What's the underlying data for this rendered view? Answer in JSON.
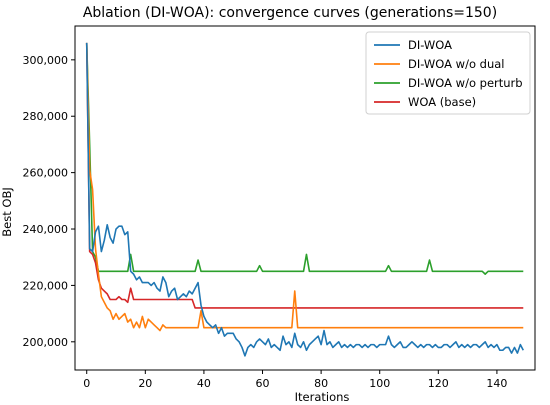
{
  "chart_data": {
    "type": "line",
    "title": "Ablation (DI-WOA): convergence curves (generations=150)",
    "xlabel": "Iterations",
    "ylabel": "Best OBJ",
    "xlim": [
      -4,
      153
    ],
    "ylim": [
      190000,
      312000
    ],
    "xticks": [
      0,
      20,
      40,
      60,
      80,
      100,
      120,
      140
    ],
    "xtick_labels": [
      "0",
      "20",
      "40",
      "60",
      "80",
      "100",
      "120",
      "140"
    ],
    "yticks": [
      200000,
      220000,
      240000,
      260000,
      280000,
      300000
    ],
    "ytick_labels": [
      "200,000",
      "220,000",
      "240,000",
      "260,000",
      "280,000",
      "300,000"
    ],
    "grid": false,
    "legend_position": "top-right",
    "series": [
      {
        "name": "DI-WOA",
        "color": "#1f77b4",
        "values": [
          306000,
          233000,
          232000,
          239000,
          241000,
          232000,
          236000,
          241500,
          237000,
          235000,
          240000,
          241000,
          241000,
          238000,
          239000,
          225000,
          224000,
          222000,
          223000,
          221000,
          221000,
          221000,
          220000,
          221000,
          219000,
          218000,
          223000,
          221000,
          216000,
          218000,
          219000,
          215000,
          216000,
          217000,
          216000,
          218000,
          217000,
          219000,
          221000,
          213000,
          209000,
          207000,
          206000,
          205000,
          206000,
          203000,
          205000,
          202000,
          203000,
          203000,
          203000,
          201000,
          200000,
          198000,
          195000,
          198000,
          199000,
          198000,
          200000,
          201000,
          200000,
          199000,
          201000,
          198000,
          199000,
          198000,
          197000,
          202000,
          199000,
          200000,
          198000,
          203000,
          199000,
          198000,
          200000,
          197000,
          199000,
          200000,
          201000,
          202000,
          199000,
          204000,
          199000,
          200000,
          198000,
          199000,
          200000,
          198000,
          199000,
          198000,
          199000,
          198000,
          199000,
          199000,
          198000,
          199000,
          198000,
          199000,
          199000,
          198000,
          199000,
          199000,
          199000,
          202000,
          199000,
          198000,
          199000,
          200000,
          198000,
          198000,
          199000,
          200000,
          199000,
          198000,
          199000,
          198000,
          199000,
          199000,
          198000,
          199000,
          198000,
          198000,
          199000,
          199000,
          198000,
          199000,
          200000,
          198000,
          199000,
          198000,
          199000,
          198000,
          199000,
          199000,
          198000,
          199000,
          200000,
          198000,
          199000,
          198000,
          199000,
          197000,
          197000,
          198000,
          198000,
          196000,
          198000,
          196000,
          199000,
          197000
        ],
        "svg_path_note": ""
      },
      {
        "name": "DI-WOA w/o dual",
        "color": "#ff7f0e",
        "values": [
          306000,
          261000,
          254000,
          233000,
          224000,
          216000,
          214000,
          212000,
          211000,
          208000,
          210000,
          208000,
          209000,
          210000,
          207000,
          208000,
          205000,
          207000,
          205000,
          209000,
          205000,
          208000,
          207000,
          206000,
          205000,
          204000,
          206000,
          205000,
          205000,
          205000,
          205000,
          205000,
          205000,
          205000,
          205000,
          205000,
          205000,
          205000,
          205000,
          211000,
          205000,
          205000,
          205000,
          205000,
          205000,
          205000,
          205000,
          205000,
          205000,
          205000,
          205000,
          205000,
          205000,
          205000,
          205000,
          205000,
          205000,
          205000,
          205000,
          205000,
          205000,
          205000,
          205000,
          205000,
          205000,
          205000,
          205000,
          205000,
          205000,
          205000,
          205000,
          218000,
          205000,
          205000,
          205000,
          205000,
          205000,
          205000,
          205000,
          205000,
          205000,
          205000,
          205000,
          205000,
          205000,
          205000,
          205000,
          205000,
          205000,
          205000,
          205000,
          205000,
          205000,
          205000,
          205000,
          205000,
          205000,
          205000,
          205000,
          205000,
          205000,
          205000,
          205000,
          205000,
          205000,
          205000,
          205000,
          205000,
          205000,
          205000,
          205000,
          205000,
          205000,
          205000,
          205000,
          205000,
          205000,
          205000,
          205000,
          205000,
          205000,
          205000,
          205000,
          205000,
          205000,
          205000,
          205000,
          205000,
          205000,
          205000,
          205000,
          205000,
          205000,
          205000,
          205000,
          205000,
          205000,
          205000,
          205000,
          205000,
          205000,
          205000,
          205000,
          205000,
          205000,
          205000,
          205000,
          205000,
          205000,
          205000
        ]
      },
      {
        "name": "DI-WOA w/o perturb",
        "color": "#2ca02c",
        "values": [
          306000,
          270000,
          232000,
          230000,
          225000,
          225000,
          225000,
          225000,
          225000,
          225000,
          225000,
          225000,
          225000,
          225000,
          225000,
          231000,
          225000,
          225000,
          225000,
          225000,
          225000,
          225000,
          225000,
          225000,
          225000,
          225000,
          225000,
          225000,
          225000,
          225000,
          225000,
          225000,
          225000,
          225000,
          225000,
          225000,
          225000,
          225000,
          229000,
          225000,
          225000,
          225000,
          225000,
          225000,
          225000,
          225000,
          225000,
          225000,
          225000,
          225000,
          225000,
          225000,
          225000,
          225000,
          225000,
          225000,
          225000,
          225000,
          225000,
          227000,
          225000,
          225000,
          225000,
          225000,
          225000,
          225000,
          225000,
          225000,
          225000,
          225000,
          225000,
          225000,
          225000,
          225000,
          225000,
          231000,
          225000,
          225000,
          225000,
          225000,
          225000,
          225000,
          225000,
          225000,
          225000,
          225000,
          225000,
          225000,
          225000,
          225000,
          225000,
          225000,
          225000,
          225000,
          225000,
          225000,
          225000,
          225000,
          225000,
          225000,
          225000,
          225000,
          225000,
          227000,
          225000,
          225000,
          225000,
          225000,
          225000,
          225000,
          225000,
          225000,
          225000,
          225000,
          225000,
          225000,
          225000,
          229000,
          225000,
          225000,
          225000,
          225000,
          225000,
          225000,
          225000,
          225000,
          225000,
          225000,
          225000,
          225000,
          225000,
          225000,
          225000,
          225000,
          225000,
          225000,
          224000,
          225000,
          225000,
          225000,
          225000,
          225000,
          225000,
          225000,
          225000,
          225000,
          225000,
          225000,
          225000,
          225000
        ]
      },
      {
        "name": "WOA (base)",
        "color": "#d62728",
        "values": [
          306000,
          232000,
          231000,
          228000,
          222000,
          219000,
          218000,
          217000,
          215000,
          215000,
          215000,
          216000,
          215000,
          215000,
          214000,
          219000,
          215000,
          215000,
          215000,
          215000,
          215000,
          215000,
          215000,
          215000,
          215000,
          215000,
          215000,
          215000,
          215000,
          215000,
          215000,
          215000,
          215000,
          215000,
          215000,
          215000,
          215000,
          212000,
          212000,
          212000,
          212000,
          212000,
          212000,
          212000,
          212000,
          212000,
          212000,
          212000,
          212000,
          212000,
          212000,
          212000,
          212000,
          212000,
          212000,
          212000,
          212000,
          212000,
          212000,
          212000,
          212000,
          212000,
          212000,
          212000,
          212000,
          212000,
          212000,
          212000,
          212000,
          212000,
          212000,
          212000,
          212000,
          212000,
          212000,
          212000,
          212000,
          212000,
          212000,
          212000,
          212000,
          212000,
          212000,
          212000,
          212000,
          212000,
          212000,
          212000,
          212000,
          212000,
          212000,
          212000,
          212000,
          212000,
          212000,
          212000,
          212000,
          212000,
          212000,
          212000,
          212000,
          212000,
          212000,
          212000,
          212000,
          212000,
          212000,
          212000,
          212000,
          212000,
          212000,
          212000,
          212000,
          212000,
          212000,
          212000,
          212000,
          212000,
          212000,
          212000,
          212000,
          212000,
          212000,
          212000,
          212000,
          212000,
          212000,
          212000,
          212000,
          212000,
          212000,
          212000,
          212000,
          212000,
          212000,
          212000,
          212000,
          212000,
          212000,
          212000,
          212000,
          212000,
          212000,
          212000,
          212000,
          212000,
          212000,
          212000,
          212000,
          212000
        ]
      }
    ]
  }
}
